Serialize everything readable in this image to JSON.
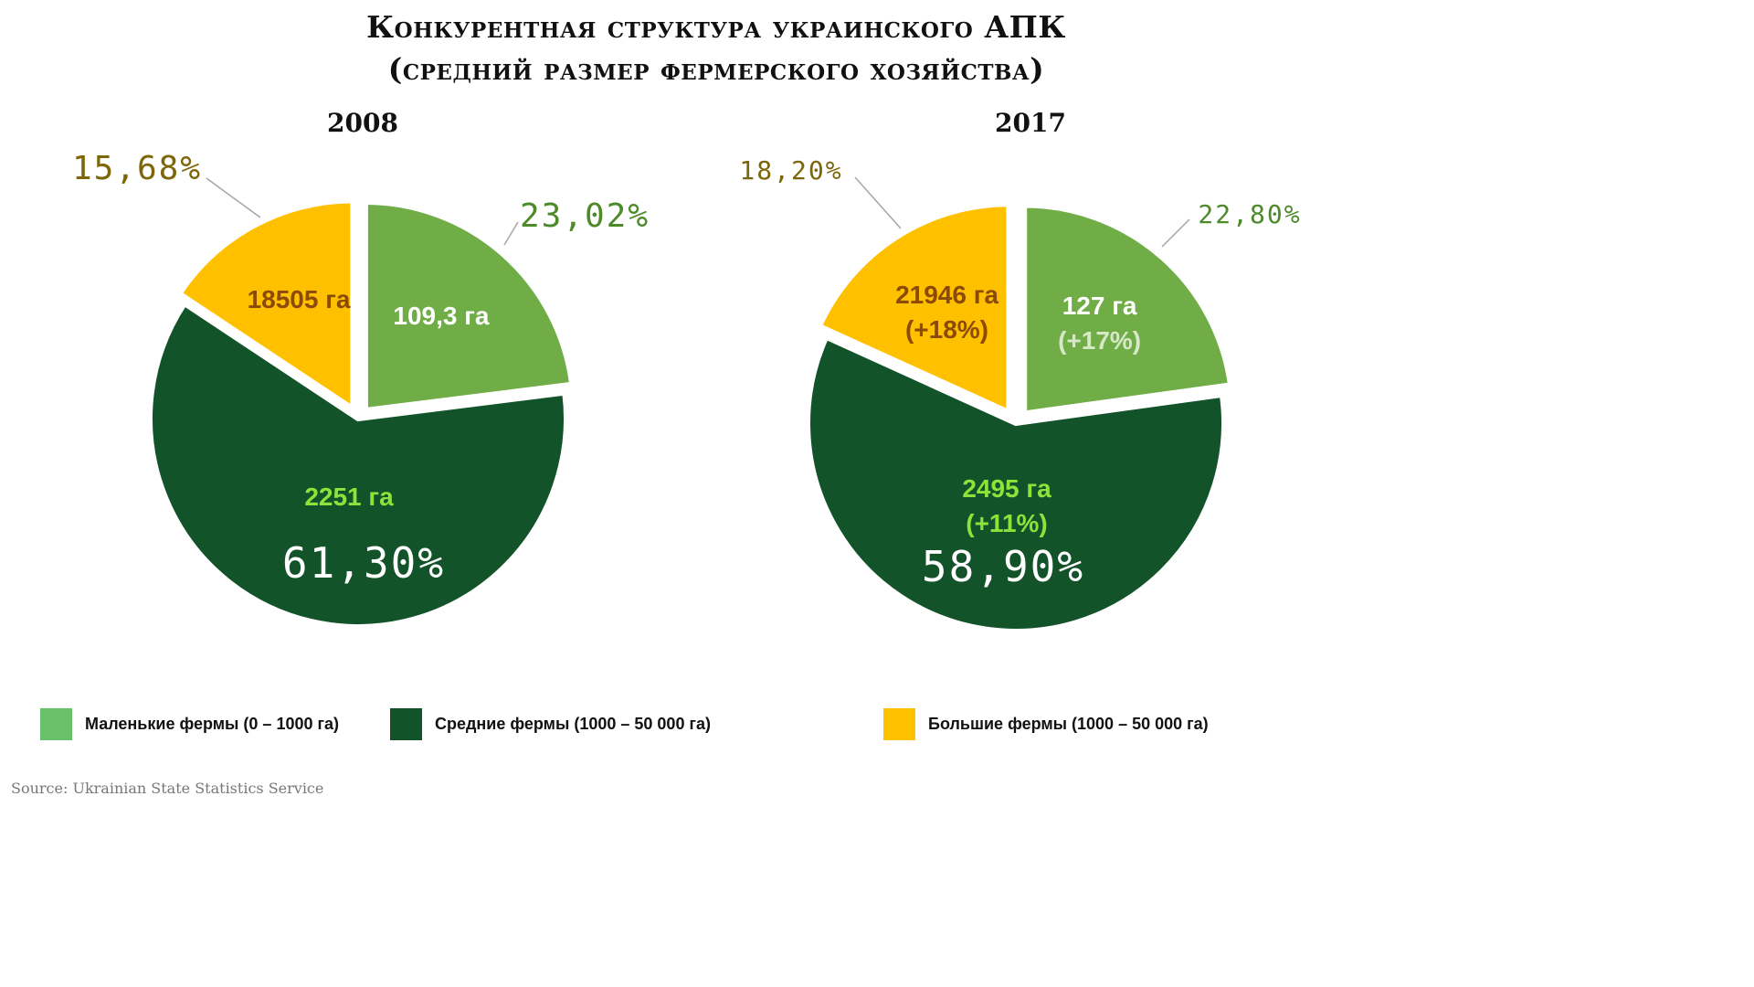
{
  "title_line1": "Конкурентная структура украинского АПК",
  "title_line2": "(средний размер фермерского хозяйства)",
  "source": "Source:  Ukrainian State Statistics Service",
  "legend": [
    {
      "label": "Маленькие фермы (0 – 1000 га)",
      "color": "#6abf69"
    },
    {
      "label": "Средние фермы (1000 – 50 000 га)",
      "color": "#12532a"
    },
    {
      "label": "Большие фермы (1000 – 50 000 га)",
      "color": "#ffc000"
    }
  ],
  "chart_data": [
    {
      "type": "pie",
      "title": "2008",
      "categories": [
        "Маленькие фермы",
        "Средние фермы",
        "Большие фермы"
      ],
      "values": [
        23.02,
        61.3,
        15.68
      ],
      "percent_labels": [
        "23,02%",
        "61,30%",
        "15,68%"
      ],
      "size_labels": [
        "109,3 га",
        "2251 га",
        "18505 га"
      ],
      "change_labels": [
        "",
        "",
        ""
      ],
      "colors": [
        "#70ad47",
        "#12532a",
        "#ffc000"
      ]
    },
    {
      "type": "pie",
      "title": "2017",
      "categories": [
        "Маленькие фермы",
        "Средние фермы",
        "Большие фермы"
      ],
      "values": [
        22.8,
        58.9,
        18.2
      ],
      "percent_labels": [
        "22,80%",
        "58,90%",
        "18,20%"
      ],
      "size_labels": [
        "127 га",
        "2495 га",
        "21946 га"
      ],
      "change_labels": [
        "(+17%)",
        "(+11%)",
        "(+18%)"
      ],
      "colors": [
        "#70ad47",
        "#12532a",
        "#ffc000"
      ]
    }
  ]
}
